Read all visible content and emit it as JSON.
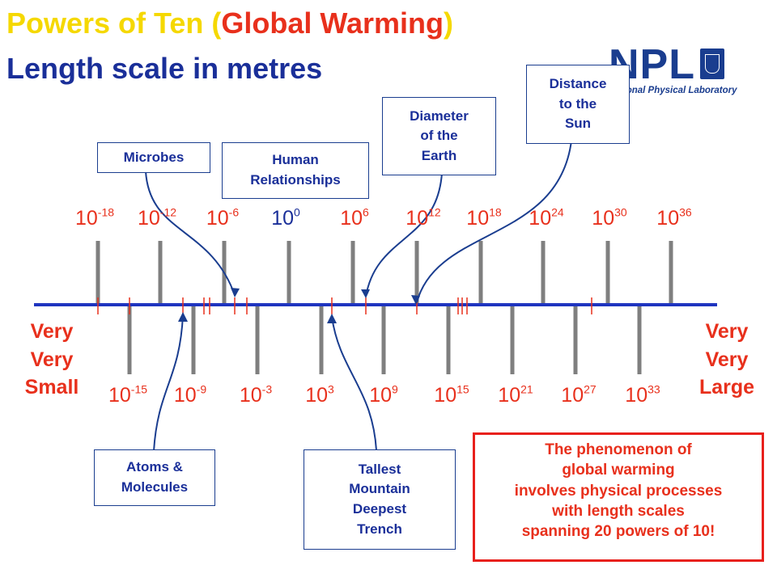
{
  "title": {
    "part1": "Powers of Ten (",
    "part2": "Global Warming",
    "part3": ")",
    "line2": "Length scale in metres"
  },
  "logo": {
    "text": "NPL",
    "subtitle": "National Physical Laboratory",
    "icon": "crest-icon"
  },
  "scale": {
    "top_labels": [
      {
        "base": "10",
        "exp": "-18"
      },
      {
        "base": "10",
        "exp": "-12"
      },
      {
        "base": "10",
        "exp": "-6"
      },
      {
        "base": "10",
        "exp": "0"
      },
      {
        "base": "10",
        "exp": "6"
      },
      {
        "base": "10",
        "exp": "12"
      },
      {
        "base": "10",
        "exp": "18"
      },
      {
        "base": "10",
        "exp": "24"
      },
      {
        "base": "10",
        "exp": "30"
      },
      {
        "base": "10",
        "exp": "36"
      }
    ],
    "bottom_labels": [
      {
        "base": "10",
        "exp": "-15"
      },
      {
        "base": "10",
        "exp": "-9"
      },
      {
        "base": "10",
        "exp": "-3"
      },
      {
        "base": "10",
        "exp": "3"
      },
      {
        "base": "10",
        "exp": "9"
      },
      {
        "base": "10",
        "exp": "15"
      },
      {
        "base": "10",
        "exp": "21"
      },
      {
        "base": "10",
        "exp": "27"
      },
      {
        "base": "10",
        "exp": "33"
      }
    ]
  },
  "ends": {
    "left": [
      "Very",
      "Very",
      "Small"
    ],
    "right": [
      "Very",
      "Very",
      "Large"
    ]
  },
  "callouts": {
    "microbes": "Microbes",
    "human": [
      "Human",
      "Relationships"
    ],
    "earth": [
      "Diameter",
      "of the",
      "Earth"
    ],
    "sun": [
      "Distance",
      "to the",
      "Sun"
    ],
    "atoms": [
      "Atoms &",
      "Molecules"
    ],
    "mountain": [
      "Tallest",
      "Mountain",
      "Deepest",
      "Trench"
    ]
  },
  "note": [
    "The phenomenon of",
    "global warming",
    "involves physical processes",
    "with length scales",
    "spanning 20 powers of 10!"
  ],
  "colors": {
    "accent_red": "#e8301c",
    "blue": "#1a2f99",
    "axis": "#1f35c0",
    "tick": "#7f7f7f",
    "yellow": "#f5d800"
  }
}
